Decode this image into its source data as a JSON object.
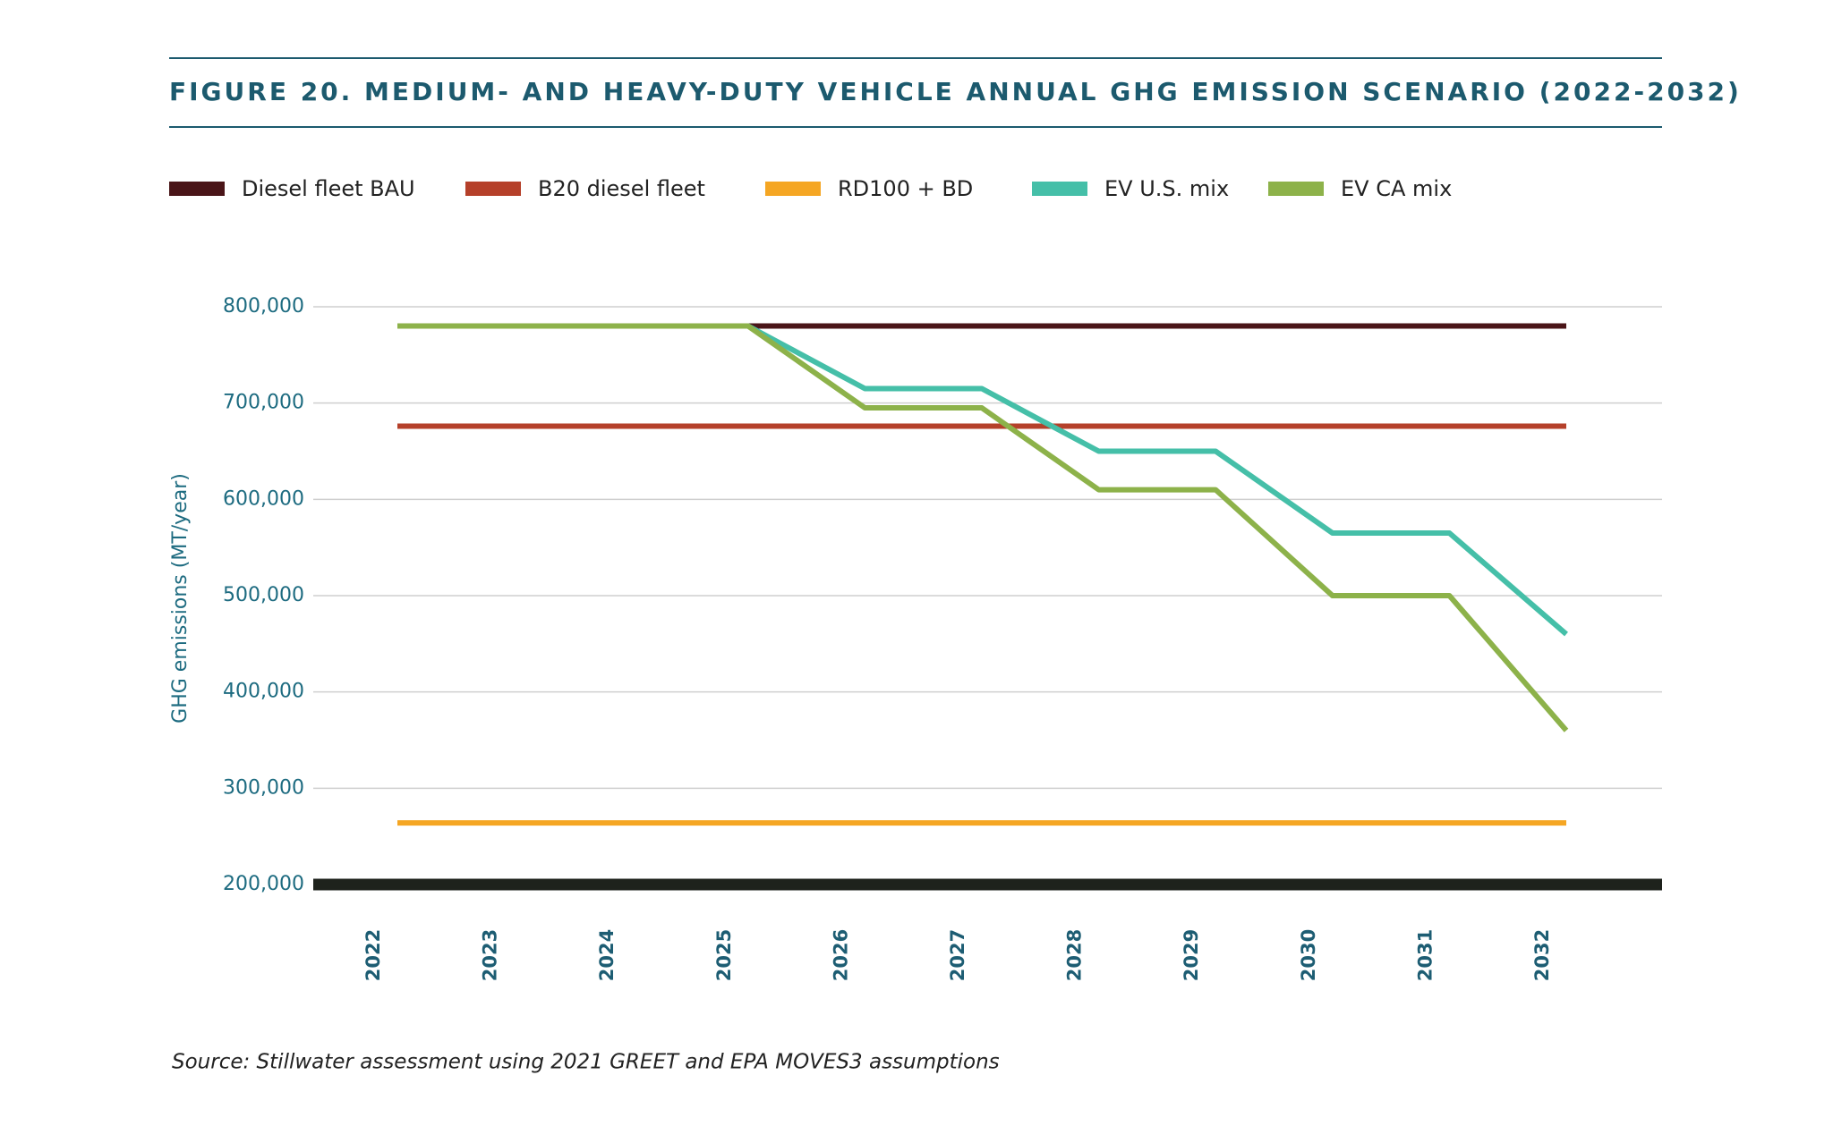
{
  "chart_data": {
    "type": "line",
    "title": "FIGURE 20. MEDIUM- AND HEAVY-DUTY VEHICLE ANNUAL GHG EMISSION SCENARIO (2022-2032)",
    "y_label": "GHG emissions (MT/year)",
    "source": "Source: Stillwater assessment using 2021 GREET and EPA MOVES3 assumptions",
    "categories": [
      "2022",
      "2023",
      "2024",
      "2025",
      "2026",
      "2027",
      "2028",
      "2029",
      "2030",
      "2031",
      "2032"
    ],
    "series": [
      {
        "name": "Diesel fleet BAU",
        "color": "#4a1518",
        "values": [
          780000,
          780000,
          780000,
          780000,
          780000,
          780000,
          780000,
          780000,
          780000,
          780000,
          780000
        ]
      },
      {
        "name": "B20 diesel fleet",
        "color": "#b5402a",
        "values": [
          676000,
          676000,
          676000,
          676000,
          676000,
          676000,
          676000,
          676000,
          676000,
          676000,
          676000
        ]
      },
      {
        "name": "RD100 + BD",
        "color": "#f5a623",
        "values": [
          264000,
          264000,
          264000,
          264000,
          264000,
          264000,
          264000,
          264000,
          264000,
          264000,
          264000
        ]
      },
      {
        "name": "EV U.S. mix",
        "color": "#45bfa8",
        "values": [
          780000,
          780000,
          780000,
          780000,
          715000,
          715000,
          650000,
          650000,
          565000,
          565000,
          460000
        ]
      },
      {
        "name": "EV CA mix",
        "color": "#8db24a",
        "values": [
          780000,
          780000,
          780000,
          780000,
          695000,
          695000,
          610000,
          610000,
          500000,
          500000,
          360000
        ]
      }
    ],
    "ylim": [
      200000,
      800000
    ],
    "yticks": [
      {
        "value": 200000,
        "label": "200,000"
      },
      {
        "value": 300000,
        "label": "300,000"
      },
      {
        "value": 400000,
        "label": "400,000"
      },
      {
        "value": 500000,
        "label": "500,000"
      },
      {
        "value": 600000,
        "label": "600,000"
      },
      {
        "value": 700000,
        "label": "700,000"
      },
      {
        "value": 800000,
        "label": "800,000"
      }
    ],
    "grid": true
  }
}
